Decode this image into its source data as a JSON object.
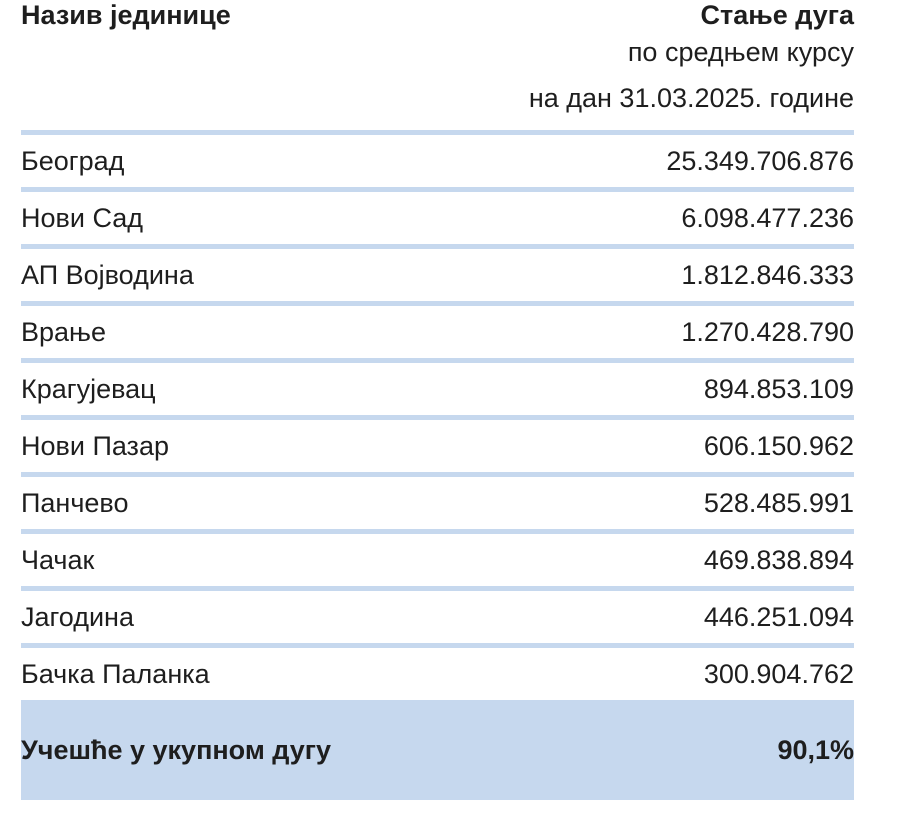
{
  "header": {
    "column_name": "Назив јединице",
    "column_value_line1": "Стање дуга",
    "column_value_line2": "по средњем курсу",
    "column_value_line3": "на дан 31.03.2025. године"
  },
  "rows": [
    {
      "name": "Београд",
      "value": "25.349.706.876"
    },
    {
      "name": "Нови Сад",
      "value": "6.098.477.236"
    },
    {
      "name": "АП Војводина",
      "value": "1.812.846.333"
    },
    {
      "name": "Врање",
      "value": "1.270.428.790"
    },
    {
      "name": "Крагујевац",
      "value": "894.853.109"
    },
    {
      "name": "Нови Пазар",
      "value": "606.150.962"
    },
    {
      "name": "Панчево",
      "value": "528.485.991"
    },
    {
      "name": "Чачак",
      "value": "469.838.894"
    },
    {
      "name": "Јагодина",
      "value": "446.251.094"
    },
    {
      "name": "Бачка Паланка",
      "value": "300.904.762"
    }
  ],
  "total": {
    "label": "Учешће у укупном дугу",
    "value": "90,1%"
  },
  "colors": {
    "separator": "#c6d8ee",
    "total_background": "#c6d8ee",
    "text": "#1e1e1e"
  }
}
